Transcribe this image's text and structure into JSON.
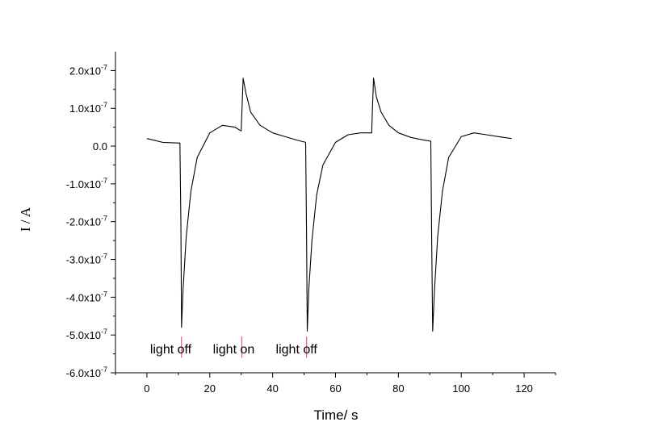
{
  "chart_data": {
    "type": "line",
    "xlabel": "Time/ s",
    "ylabel": "I / A",
    "xlim": [
      -10,
      130
    ],
    "ylim": [
      -6e-07,
      2.5e-07
    ],
    "x_ticks": [
      0,
      20,
      40,
      60,
      80,
      100,
      120
    ],
    "x_tick_labels": [
      "0",
      "20",
      "40",
      "60",
      "80",
      "100",
      "120"
    ],
    "y_ticks": [
      2e-07,
      1e-07,
      0,
      -1e-07,
      -2e-07,
      -3e-07,
      -4e-07,
      -5e-07,
      -6e-07
    ],
    "y_tick_labels": [
      {
        "mantissa": "2.0x10",
        "exp": "-7"
      },
      {
        "mantissa": "1.0x10",
        "exp": "-7"
      },
      {
        "mantissa": "0.0",
        "exp": ""
      },
      {
        "mantissa": "-1.0x10",
        "exp": "-7"
      },
      {
        "mantissa": "-2.0x10",
        "exp": "-7"
      },
      {
        "mantissa": "-3.0x10",
        "exp": "-7"
      },
      {
        "mantissa": "-4.0x10",
        "exp": "-7"
      },
      {
        "mantissa": "-5.0x10",
        "exp": "-7"
      },
      {
        "mantissa": "-6.0x10",
        "exp": "-7"
      }
    ],
    "grid": false,
    "series": [
      {
        "color": "#000000",
        "x": [
          0,
          5,
          10.5,
          10.8,
          11.0,
          11.5,
          12.5,
          14,
          16,
          20,
          24,
          28,
          30,
          30.3,
          30.6,
          31.5,
          33,
          36,
          40,
          44,
          48,
          50.5,
          50.8,
          51.0,
          51.5,
          52.5,
          54,
          56,
          60,
          64,
          68,
          71.5,
          71.8,
          72.1,
          73,
          74.5,
          77,
          80,
          84,
          88,
          90.3,
          90.6,
          90.9,
          91.5,
          92.5,
          94,
          96,
          100,
          104,
          108,
          112,
          116
        ],
        "y": [
          2e-08,
          1e-08,
          8e-09,
          -2e-07,
          -4.8e-07,
          -3.8e-07,
          -2.4e-07,
          -1.2e-07,
          -3e-08,
          3.5e-08,
          5.5e-08,
          5e-08,
          4e-08,
          1.1e-07,
          1.8e-07,
          1.4e-07,
          9e-08,
          5.5e-08,
          3.5e-08,
          2.5e-08,
          1.5e-08,
          1e-08,
          -2.5e-07,
          -4.9e-07,
          -3.8e-07,
          -2.5e-07,
          -1.3e-07,
          -5e-08,
          1e-08,
          3e-08,
          3.5e-08,
          3.5e-08,
          1.1e-07,
          1.8e-07,
          1.3e-07,
          9e-08,
          5.5e-08,
          3.5e-08,
          2.3e-08,
          1.6e-08,
          1.3e-08,
          -2.5e-07,
          -4.9e-07,
          -3.8e-07,
          -2.4e-07,
          -1.2e-07,
          -3e-08,
          2.5e-08,
          3.5e-08,
          3e-08,
          2.5e-08,
          2e-08
        ]
      }
    ],
    "annotations": [
      {
        "text": "light off",
        "x": 1
      },
      {
        "text": "light on",
        "x": 21
      },
      {
        "text": "light off",
        "x": 41
      }
    ],
    "markers": [
      {
        "x": 11,
        "color": "#e06070"
      },
      {
        "x": 30.2,
        "color": "#e06070"
      },
      {
        "x": 50.8,
        "color": "#e06070"
      }
    ]
  }
}
